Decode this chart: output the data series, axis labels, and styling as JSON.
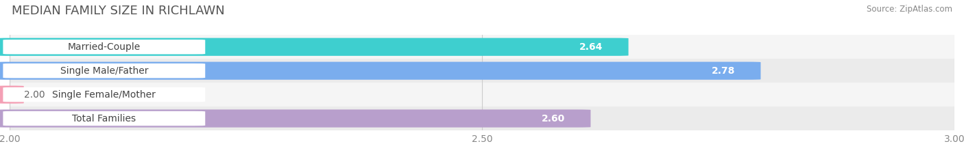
{
  "title": "MEDIAN FAMILY SIZE IN RICHLAWN",
  "source": "Source: ZipAtlas.com",
  "categories": [
    "Married-Couple",
    "Single Male/Father",
    "Single Female/Mother",
    "Total Families"
  ],
  "values": [
    2.64,
    2.78,
    2.0,
    2.6
  ],
  "bar_colors": [
    "#3ecfcf",
    "#7aadee",
    "#f4a0b5",
    "#b89fcc"
  ],
  "row_bg_colors": [
    "#f5f5f5",
    "#ebebeb",
    "#f5f5f5",
    "#ebebeb"
  ],
  "xlim": [
    2.0,
    3.0
  ],
  "xticks": [
    2.0,
    2.5,
    3.0
  ],
  "xtick_labels": [
    "2.00",
    "2.50",
    "3.00"
  ],
  "bar_height": 0.72,
  "background_color": "#ffffff",
  "title_fontsize": 13,
  "label_fontsize": 10,
  "value_fontsize": 10
}
